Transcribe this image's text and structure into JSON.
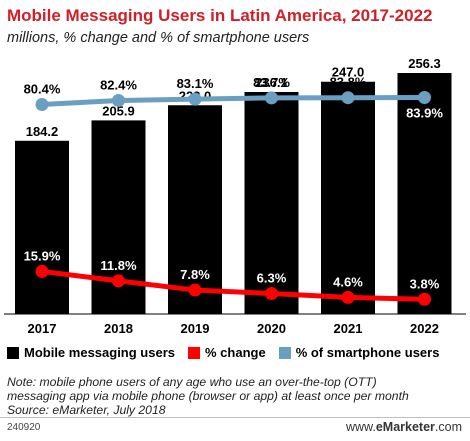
{
  "header": {
    "title": "Mobile Messaging Users in Latin America, 2017-2022",
    "subtitle": "millions, % change and % of smartphone users"
  },
  "legend": {
    "items": [
      {
        "label": "Mobile messaging users",
        "color": "#000000"
      },
      {
        "label": "% change",
        "color": "#ff0000"
      },
      {
        "label": "% of smartphone users",
        "color": "#6a9fc2"
      }
    ]
  },
  "footer": {
    "note_line1": "Note: mobile phone users of any age who use an over-the-top (OTT)",
    "note_line2": "messaging app via mobile phone (browser or app) at least once per month",
    "source": "Source: eMarketer, July 2018",
    "chart_id": "240920",
    "brand_prefix": "www.",
    "brand_name": "eMarketer",
    "brand_suffix": ".com"
  },
  "chart_data": {
    "type": "bar",
    "title": "Mobile Messaging Users in Latin America, 2017-2022",
    "subtitle": "millions, % change and % of smartphone users",
    "categories": [
      "2017",
      "2018",
      "2019",
      "2020",
      "2021",
      "2022"
    ],
    "series": [
      {
        "name": "Mobile messaging users",
        "type": "bar",
        "color": "#000000",
        "values": [
          184.2,
          205.9,
          222.0,
          236.1,
          247.0,
          256.3
        ],
        "labels": [
          "184.2",
          "205.9",
          "222.0",
          "236.1",
          "247.0",
          "256.3"
        ]
      },
      {
        "name": "% change",
        "type": "line",
        "color": "#ff0000",
        "values": [
          15.9,
          11.8,
          7.8,
          6.3,
          4.6,
          3.8
        ],
        "labels": [
          "15.9%",
          "11.8%",
          "7.8%",
          "6.3%",
          "4.6%",
          "3.8%"
        ]
      },
      {
        "name": "% of smartphone users",
        "type": "line",
        "color": "#6a9fc2",
        "values": [
          80.4,
          82.4,
          83.1,
          83.7,
          83.8,
          83.9
        ],
        "labels": [
          "80.4%",
          "82.4%",
          "83.1%",
          "83.7%",
          "83.8%",
          "83.9%"
        ]
      }
    ],
    "grid": false,
    "legend_position": "bottom"
  }
}
